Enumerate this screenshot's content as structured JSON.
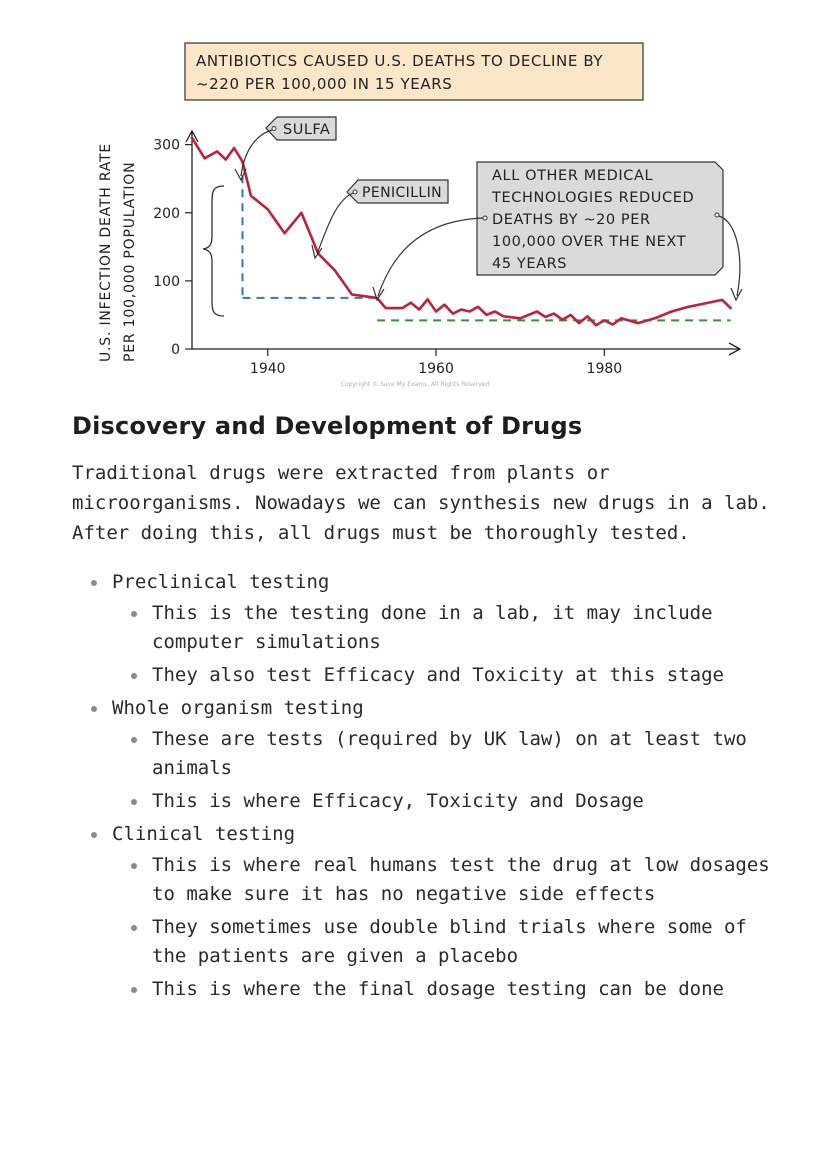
{
  "chart_data": {
    "type": "line",
    "title": "ANTIBIOTICS CAUSED U.S. DEATHS TO DECLINE BY ~220 PER 100,000 IN 15 YEARS",
    "title_lines": [
      "ANTIBIOTICS CAUSED U.S. DEATHS TO DECLINE BY",
      "~220 PER 100,000 IN 15 YEARS"
    ],
    "ylabel_lines": [
      "U.S. INFECTION DEATH RATE",
      "PER 100,000 POPULATION"
    ],
    "xlabel": "",
    "xticks": [
      1940,
      1960,
      1980
    ],
    "xtick_labels": [
      "1940",
      "1960",
      "1980"
    ],
    "yticks": [
      0,
      100,
      200,
      300
    ],
    "ytick_labels": [
      "0",
      "100",
      "200",
      "300"
    ],
    "xlim": [
      1931,
      1996
    ],
    "ylim": [
      0,
      320
    ],
    "series": [
      {
        "name": "",
        "color": "#c21f3a",
        "x": [
          1931,
          1932.5,
          1934,
          1935,
          1936,
          1937,
          1938,
          1940,
          1942,
          1944,
          1946,
          1948,
          1950,
          1953,
          1954,
          1956,
          1957,
          1958,
          1959,
          1960,
          1961,
          1962,
          1963,
          1964,
          1965,
          1966,
          1967,
          1968,
          1970,
          1972,
          1973,
          1974,
          1975,
          1976,
          1977,
          1978,
          1979,
          1980,
          1981,
          1982,
          1984,
          1986,
          1988,
          1990,
          1992,
          1994,
          1995
        ],
        "y": [
          310,
          280,
          290,
          278,
          295,
          275,
          225,
          205,
          170,
          200,
          140,
          115,
          80,
          75,
          60,
          60,
          68,
          58,
          73,
          55,
          65,
          52,
          58,
          55,
          62,
          50,
          55,
          48,
          45,
          55,
          47,
          52,
          43,
          50,
          38,
          48,
          35,
          42,
          36,
          45,
          38,
          45,
          55,
          62,
          67,
          72,
          60
        ]
      }
    ],
    "annotations": [
      {
        "text": "SULFA",
        "x": 1936.8
      },
      {
        "text": "PENICILLIN",
        "x": 1946
      },
      {
        "text_lines": [
          "ALL OTHER MEDICAL",
          "TECHNOLOGIES REDUCED",
          "DEATHS BY ~20 PER",
          "100,000 OVER THE NEXT",
          "45 YEARS"
        ]
      }
    ],
    "reference_lines": [
      {
        "color": "#2f79c1",
        "style": "dashed",
        "y": 75,
        "x_from": 1937,
        "x_to": 1953
      },
      {
        "color": "#3a8f3a",
        "style": "dashed",
        "y": 42,
        "x_from": 1953,
        "x_to": 1995
      }
    ],
    "grid": false,
    "watermark": "Copyright © Save My Exams. All Rights Reserved"
  },
  "heading": "Discovery and Development of Drugs",
  "intro": "Traditional drugs were extracted from plants or microorganisms. Nowadays we can synthesis new drugs in a lab. After doing this, all drugs must be thoroughly tested.",
  "list": [
    {
      "text": "Preclinical testing",
      "sub": [
        "This is the testing done in a lab, it may include computer simulations",
        "They also test Efficacy and Toxicity at this stage"
      ]
    },
    {
      "text": "Whole organism testing",
      "sub": [
        "These are tests (required by UK law) on at least two animals",
        "This is where Efficacy, Toxicity and Dosage"
      ]
    },
    {
      "text": "Clinical testing",
      "sub": [
        "This is where real humans test the drug at low dosages to make sure it has no negative side effects",
        "They sometimes use double blind trials where some of the patients are given a placebo",
        "This is where the final dosage testing can be done"
      ]
    }
  ]
}
